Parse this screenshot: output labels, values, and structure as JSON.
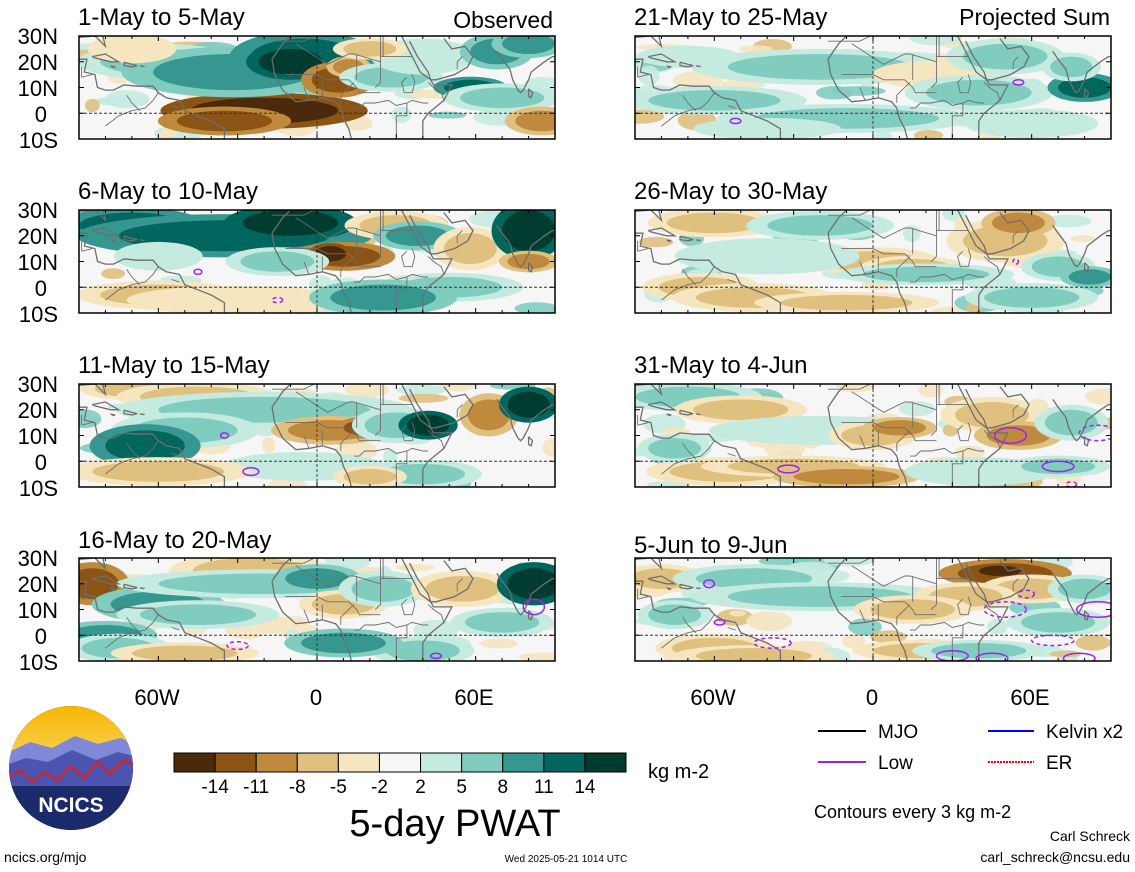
{
  "left_label": "Observed",
  "right_label": "Projected Sum",
  "panels": {
    "left": [
      "1-May to 5-May",
      "6-May to 10-May",
      "11-May to 15-May",
      "16-May to 20-May"
    ],
    "right": [
      "21-May to 25-May",
      "26-May to 30-May",
      "31-May to 4-Jun",
      "5-Jun to 9-Jun"
    ]
  },
  "lat_ticks": [
    "30N",
    "20N",
    "10N",
    "0",
    "10S"
  ],
  "lon_ticks": [
    "60W",
    "0",
    "60E"
  ],
  "colorbar": {
    "ticks": [
      "-14",
      "-11",
      "-8",
      "-5",
      "-2",
      "2",
      "5",
      "8",
      "11",
      "14"
    ],
    "colors": [
      "#4a2a0a",
      "#8b5314",
      "#c08a3e",
      "#dfc07f",
      "#f5e6c0",
      "#f6f6f6",
      "#c5ebe1",
      "#80cdc0",
      "#35978f",
      "#01665e",
      "#003c30"
    ],
    "units": "kg m-2"
  },
  "title": "5-day PWAT",
  "legend": {
    "items": [
      {
        "label": "MJO",
        "color": "#000000",
        "style": "solid"
      },
      {
        "label": "Kelvin x2",
        "color": "#0000ff",
        "style": "solid"
      },
      {
        "label": "Low",
        "color": "#a020f0",
        "style": "solid"
      },
      {
        "label": "ER",
        "color": "#ff0000",
        "style": "dotted"
      }
    ],
    "note": "Contours every 3 kg m-2"
  },
  "logo_text": "NCICS",
  "footer": {
    "site": "ncics.org/mjo",
    "timestamp": "Wed 2025-05-21 1014 UTC",
    "author": "Carl Schreck",
    "email": "carl_schreck@ncsu.edu"
  }
}
